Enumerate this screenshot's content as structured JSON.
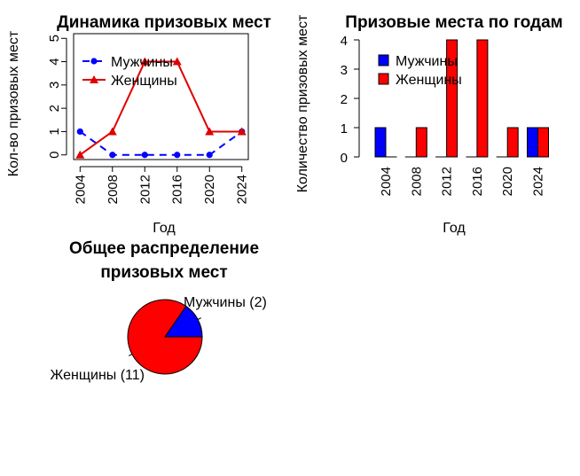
{
  "chart_data": [
    {
      "type": "line",
      "title": "Динамика призовых мест",
      "xlabel": "Год",
      "ylabel": "Кол-во призовых мест",
      "x": [
        2004,
        2008,
        2012,
        2016,
        2020,
        2024
      ],
      "ylim": [
        0,
        5
      ],
      "yticks": [
        0,
        1,
        2,
        3,
        4,
        5
      ],
      "legend_position": "top-left",
      "series": [
        {
          "name": "Мужчины",
          "values": [
            1,
            0,
            0,
            0,
            0,
            1
          ],
          "color": "#0000ff",
          "line": "dashed",
          "marker": "circle"
        },
        {
          "name": "Женщины",
          "values": [
            0,
            1,
            4,
            4,
            1,
            1
          ],
          "color": "#e00000",
          "line": "solid",
          "marker": "triangle"
        }
      ]
    },
    {
      "type": "bar",
      "title": "Призовые места по годам",
      "xlabel": "Год",
      "ylabel": "Количество призовых мест",
      "categories": [
        "2004",
        "2008",
        "2012",
        "2016",
        "2020",
        "2024"
      ],
      "ylim": [
        0,
        4
      ],
      "yticks": [
        0,
        1,
        2,
        3,
        4
      ],
      "legend_position": "top-left",
      "series": [
        {
          "name": "Мужчины",
          "values": [
            1,
            0,
            0,
            0,
            0,
            1
          ],
          "color": "#0000ff"
        },
        {
          "name": "Женщины",
          "values": [
            0,
            1,
            4,
            4,
            1,
            1
          ],
          "color": "#ff0000"
        }
      ]
    },
    {
      "type": "pie",
      "title": "Общее распределение\nпризовых мест",
      "title_lines": [
        "Общее распределение",
        "призовых мест"
      ],
      "slices": [
        {
          "label": "Мужчины (2)",
          "value": 2,
          "color": "#0000ff"
        },
        {
          "label": "Женщины (11)",
          "value": 11,
          "color": "#ff0000"
        }
      ]
    }
  ]
}
